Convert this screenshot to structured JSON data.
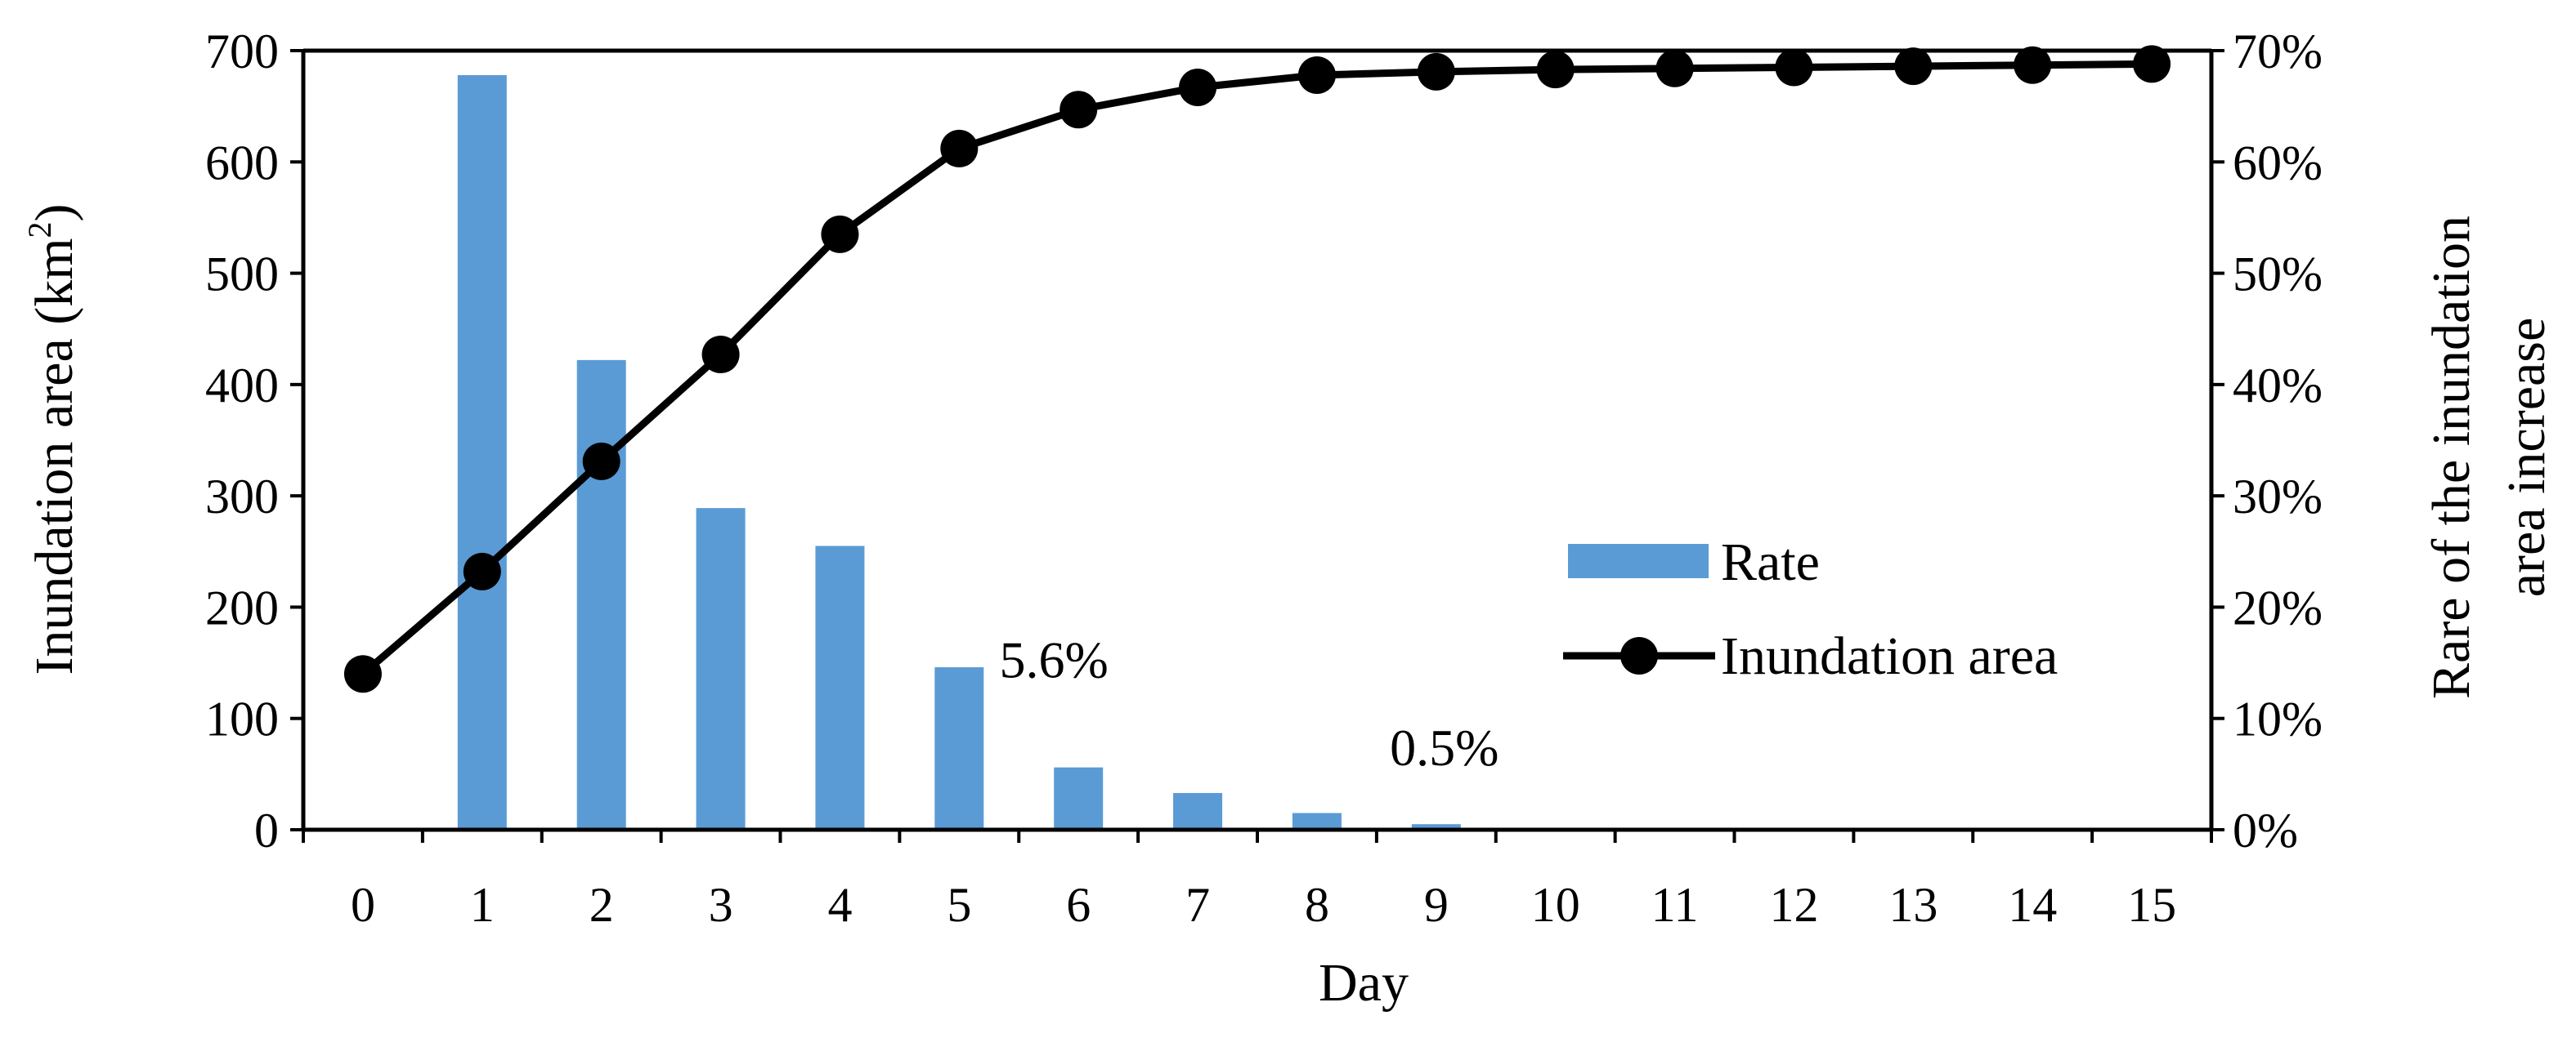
{
  "chart_data": {
    "type": "bar+line",
    "title": "",
    "x": [
      "0",
      "1",
      "2",
      "3",
      "4",
      "5",
      "6",
      "7",
      "8",
      "9",
      "10",
      "11",
      "12",
      "13",
      "14",
      "15"
    ],
    "xlabel": "Day",
    "ylabel_left": "Inundation area (km",
    "ylabel_left_sup": "2",
    "ylabel_left_close": ")",
    "ylabel_right_line1": "Rare of the inundation",
    "ylabel_right_line2": "area increase",
    "ylim_left": [
      0,
      700
    ],
    "yticks_left": [
      0,
      100,
      200,
      300,
      400,
      500,
      600,
      700
    ],
    "ylim_right": [
      0,
      70
    ],
    "yticks_right": [
      "0%",
      "10%",
      "20%",
      "30%",
      "40%",
      "50%",
      "60%",
      "70%"
    ],
    "series": [
      {
        "name": "Rate",
        "kind": "bar",
        "axis": "right",
        "color": "#5B9BD5",
        "x": [
          "1",
          "2",
          "3",
          "4",
          "5",
          "6",
          "7",
          "8",
          "9"
        ],
        "values": [
          67.8,
          42.2,
          28.9,
          25.5,
          14.6,
          5.6,
          3.3,
          1.5,
          0.5
        ]
      },
      {
        "name": "Inundation area",
        "kind": "line",
        "axis": "left",
        "color": "#000000",
        "values": [
          140,
          232,
          331,
          427,
          535,
          612,
          647,
          667,
          678,
          681,
          683,
          684,
          685,
          686,
          687,
          688
        ]
      }
    ],
    "annotations": [
      {
        "text": "5.6%",
        "x": "6"
      },
      {
        "text": "0.5%",
        "x": "9"
      }
    ],
    "legend": [
      "Rate",
      "Inundation area"
    ],
    "legend_position": "center-right"
  }
}
